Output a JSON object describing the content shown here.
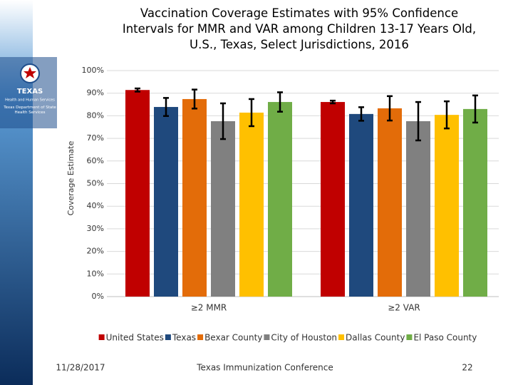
{
  "chart_data": {
    "type": "bar",
    "title": "Vaccination Coverage Estimates with 95% Confidence Intervals for MMR and VAR among Children 13-17 Years Old, U.S., Texas, Select Jurisdictions, 2016",
    "y_label": "Coverage Estimate",
    "categories": [
      "≥2 MMR",
      "≥2 VAR"
    ],
    "series": [
      {
        "name": "United States",
        "color": "#c00000",
        "values": [
          91.4,
          86.1
        ],
        "errors": [
          0.7,
          0.6
        ]
      },
      {
        "name": "Texas",
        "color": "#1f497d",
        "values": [
          83.9,
          80.8
        ],
        "errors": [
          4.0,
          3.0
        ]
      },
      {
        "name": "Bexar County",
        "color": "#e36c09",
        "values": [
          87.4,
          83.3
        ],
        "errors": [
          4.2,
          5.4
        ]
      },
      {
        "name": "City of Houston",
        "color": "#808080",
        "values": [
          77.6,
          77.6
        ],
        "errors": [
          7.9,
          8.5
        ]
      },
      {
        "name": "Dallas County",
        "color": "#ffc000",
        "values": [
          81.4,
          80.4
        ],
        "errors": [
          6.0,
          6.0
        ]
      },
      {
        "name": "El Paso County",
        "color": "#70ad47",
        "values": [
          86.1,
          83.0
        ],
        "errors": [
          4.3,
          6.0
        ]
      }
    ],
    "ylim": [
      0,
      100
    ],
    "yticks": [
      {
        "value": 0,
        "label": "0%"
      },
      {
        "value": 10,
        "label": "10%"
      },
      {
        "value": 20,
        "label": "20%"
      },
      {
        "value": 30,
        "label": "30%"
      },
      {
        "value": 40,
        "label": "40%"
      },
      {
        "value": 50,
        "label": "50%"
      },
      {
        "value": 60,
        "label": "60%"
      },
      {
        "value": 70,
        "label": "70%"
      },
      {
        "value": 80,
        "label": "80%"
      },
      {
        "value": 90,
        "label": "90%"
      },
      {
        "value": 100,
        "label": "100%"
      }
    ],
    "grid": true,
    "legend": "bottom"
  },
  "logo": {
    "name": "TEXAS",
    "agency": "Health and Human Services",
    "department": "Texas Department of State Health Services"
  },
  "footer": {
    "date": "11/28/2017",
    "event": "Texas Immunization Conference",
    "page": "22"
  }
}
